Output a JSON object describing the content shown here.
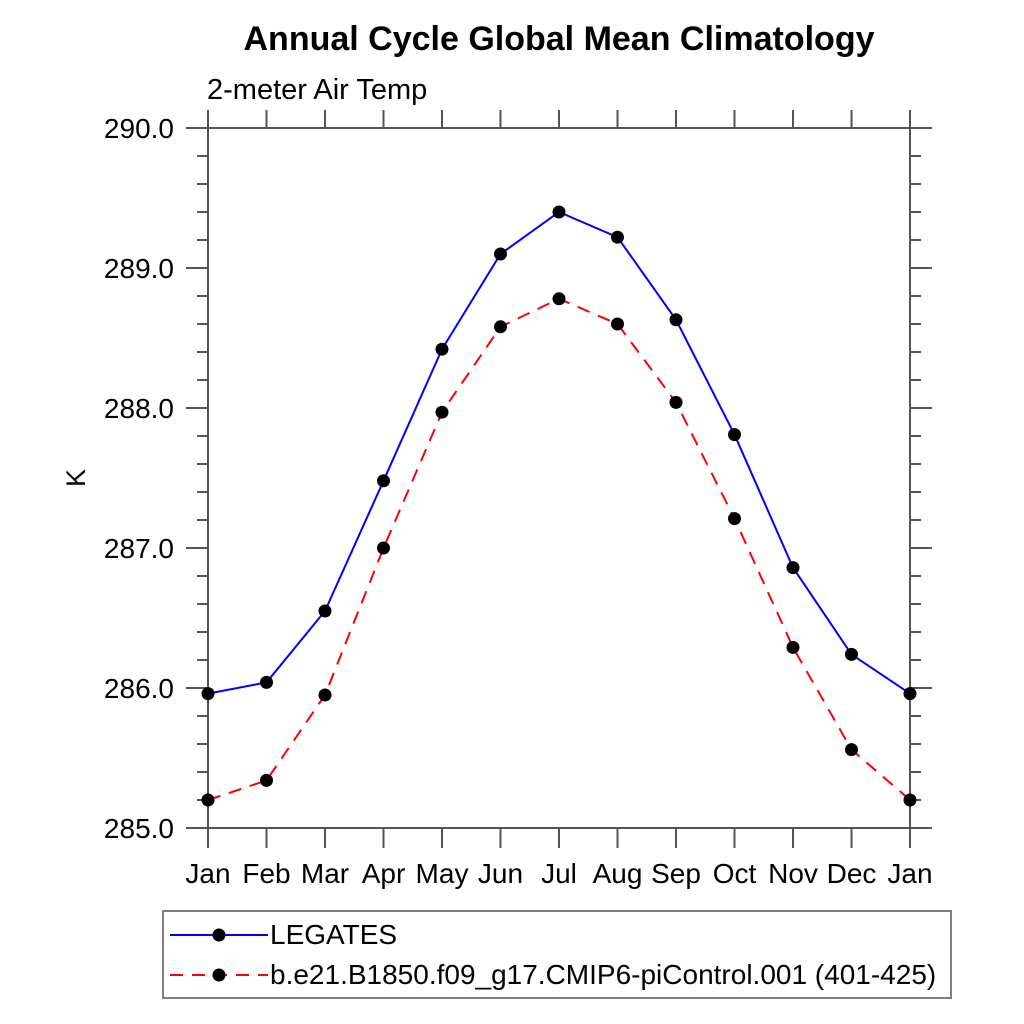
{
  "page": {
    "background": "#ffffff"
  },
  "chart_data": {
    "type": "line",
    "title": "Annual Cycle Global Mean Climatology",
    "subtitle": "2-meter Air Temp",
    "xlabel": "",
    "ylabel": "K",
    "x_categories": [
      "Jan",
      "Feb",
      "Mar",
      "Apr",
      "May",
      "Jun",
      "Jul",
      "Aug",
      "Sep",
      "Oct",
      "Nov",
      "Dec",
      "Jan"
    ],
    "ylim": [
      285.0,
      290.0
    ],
    "y_major_ticks": [
      285.0,
      286.0,
      287.0,
      288.0,
      289.0,
      290.0
    ],
    "y_tick_labels": [
      "285.0",
      "286.0",
      "287.0",
      "288.0",
      "289.0",
      "290.0"
    ],
    "y_minor_step": 0.2,
    "grid": false,
    "legend_position": "bottom-left-box",
    "axis_color": "#555555",
    "marker_color": "#000000",
    "series": [
      {
        "name": "LEGATES",
        "color": "#0000ff",
        "style": "solid",
        "marker": "circle",
        "values": [
          285.96,
          286.04,
          286.55,
          287.48,
          288.42,
          289.1,
          289.4,
          289.22,
          288.63,
          287.81,
          286.86,
          286.24,
          285.96
        ]
      },
      {
        "name": "b.e21.B1850.f09_g17.CMIP6-piControl.001 (401-425)",
        "color": "#ff0000",
        "style": "dashed",
        "marker": "circle",
        "values": [
          285.2,
          285.34,
          285.95,
          287.0,
          287.97,
          288.58,
          288.78,
          288.6,
          288.04,
          287.21,
          286.29,
          285.56,
          285.2
        ]
      }
    ]
  }
}
